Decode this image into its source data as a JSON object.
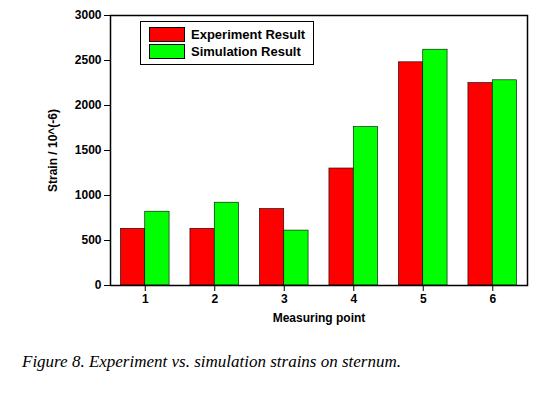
{
  "chart_data": {
    "type": "bar",
    "caption": "Figure 8. Experiment vs. simulation strains on sternum.",
    "x_label": "Measuring point",
    "y_label": "Strain / 10^(-6)",
    "categories": [
      "1",
      "2",
      "3",
      "4",
      "5",
      "6"
    ],
    "series": [
      {
        "name": "Experiment Result",
        "color": "#ff0000",
        "values": [
          630,
          630,
          850,
          1300,
          2480,
          2250
        ]
      },
      {
        "name": "Simulation Result",
        "color": "#00ff00",
        "values": [
          820,
          920,
          610,
          1760,
          2620,
          2280
        ]
      }
    ],
    "ylim": [
      0,
      3000
    ],
    "yticks": [
      0,
      500,
      1000,
      1500,
      2000,
      2500,
      3000
    ],
    "grid": false,
    "legend": "top-left"
  }
}
